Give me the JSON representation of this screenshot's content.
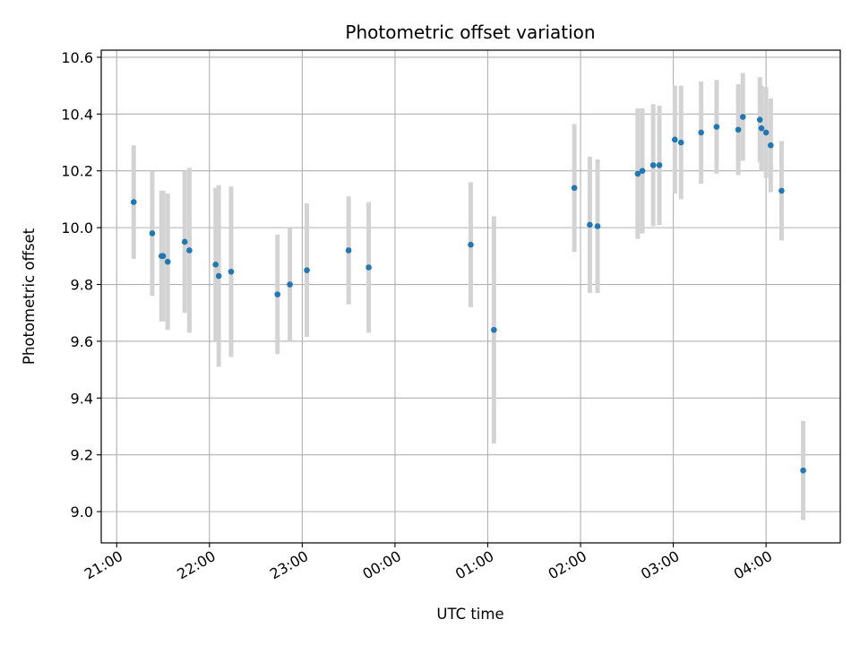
{
  "chart_data": {
    "type": "scatter",
    "title": "Photometric offset variation",
    "xlabel": "UTC time",
    "ylabel": "Photometric offset",
    "x_is_time": true,
    "xlim": [
      "20:50",
      "04:48"
    ],
    "ylim": [
      8.89,
      10.625
    ],
    "x_ticks": [
      "21:00",
      "22:00",
      "23:00",
      "00:00",
      "01:00",
      "02:00",
      "03:00",
      "04:00"
    ],
    "y_ticks": [
      "9.0",
      "9.2",
      "9.4",
      "9.6",
      "9.8",
      "10.0",
      "10.2",
      "10.4",
      "10.6"
    ],
    "grid": true,
    "legend": "none",
    "colors": {
      "point": "#1f77b4",
      "errorbar": "#d3d3d3",
      "grid": "#b0b0b0"
    },
    "points": [
      {
        "time": "21:11",
        "value": 10.09,
        "error": 0.2
      },
      {
        "time": "21:23",
        "value": 9.98,
        "error": 0.22
      },
      {
        "time": "21:29",
        "value": 9.9,
        "error": 0.23
      },
      {
        "time": "21:30",
        "value": 9.9,
        "error": 0.23
      },
      {
        "time": "21:33",
        "value": 9.88,
        "error": 0.24
      },
      {
        "time": "21:44",
        "value": 9.95,
        "error": 0.25
      },
      {
        "time": "21:47",
        "value": 9.92,
        "error": 0.29
      },
      {
        "time": "22:04",
        "value": 9.87,
        "error": 0.27
      },
      {
        "time": "22:06",
        "value": 9.83,
        "error": 0.32
      },
      {
        "time": "22:14",
        "value": 9.845,
        "error": 0.3
      },
      {
        "time": "22:44",
        "value": 9.765,
        "error": 0.21
      },
      {
        "time": "22:52",
        "value": 9.8,
        "error": 0.2
      },
      {
        "time": "23:03",
        "value": 9.85,
        "error": 0.235
      },
      {
        "time": "23:30",
        "value": 9.92,
        "error": 0.19
      },
      {
        "time": "23:43",
        "value": 9.86,
        "error": 0.23
      },
      {
        "time": "00:49",
        "value": 9.94,
        "error": 0.22
      },
      {
        "time": "01:04",
        "value": 9.64,
        "error": 0.4
      },
      {
        "time": "01:56",
        "value": 10.14,
        "error": 0.225
      },
      {
        "time": "02:06",
        "value": 10.01,
        "error": 0.24
      },
      {
        "time": "02:11",
        "value": 10.005,
        "error": 0.235
      },
      {
        "time": "02:37",
        "value": 10.19,
        "error": 0.23
      },
      {
        "time": "02:40",
        "value": 10.2,
        "error": 0.22
      },
      {
        "time": "02:47",
        "value": 10.22,
        "error": 0.215
      },
      {
        "time": "02:51",
        "value": 10.22,
        "error": 0.21
      },
      {
        "time": "03:01",
        "value": 10.31,
        "error": 0.19
      },
      {
        "time": "03:05",
        "value": 10.3,
        "error": 0.2
      },
      {
        "time": "03:18",
        "value": 10.335,
        "error": 0.18
      },
      {
        "time": "03:28",
        "value": 10.355,
        "error": 0.165
      },
      {
        "time": "03:42",
        "value": 10.345,
        "error": 0.16
      },
      {
        "time": "03:45",
        "value": 10.39,
        "error": 0.155
      },
      {
        "time": "03:56",
        "value": 10.38,
        "error": 0.15
      },
      {
        "time": "03:57",
        "value": 10.35,
        "error": 0.15
      },
      {
        "time": "04:00",
        "value": 10.335,
        "error": 0.16
      },
      {
        "time": "04:03",
        "value": 10.29,
        "error": 0.165
      },
      {
        "time": "04:10",
        "value": 10.13,
        "error": 0.175
      },
      {
        "time": "04:24",
        "value": 9.145,
        "error": 0.175
      }
    ]
  }
}
